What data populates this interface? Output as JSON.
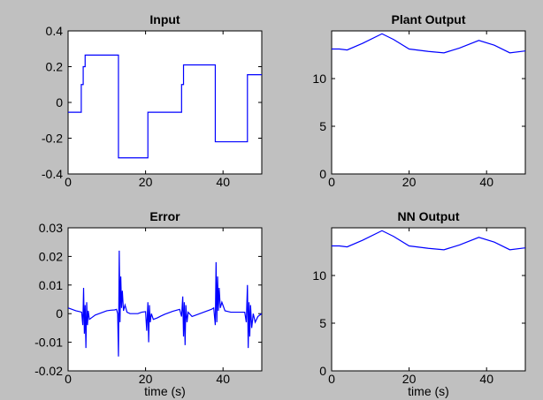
{
  "chart_data": [
    {
      "type": "line",
      "title": "Input",
      "xlabel": "",
      "ylabel": "",
      "xlim": [
        0,
        50
      ],
      "ylim": [
        -0.4,
        0.4
      ],
      "xticks": [
        0,
        20,
        40
      ],
      "xtick_labels": [
        "0",
        "20",
        "40"
      ],
      "yticks": [
        -0.4,
        -0.2,
        0,
        0.2,
        0.4
      ],
      "ytick_labels": [
        "-0.4",
        "-0.2",
        "0",
        "0.2",
        "0.4"
      ],
      "grid": false,
      "color": "#0000ff",
      "step": true,
      "x": [
        0,
        3.4,
        3.9,
        4.4,
        12.8,
        13.0,
        20.6,
        29.3,
        29.8,
        38.0,
        46.3
      ],
      "y": [
        -0.055,
        0.1,
        0.2,
        0.265,
        0.265,
        -0.31,
        -0.055,
        0.1,
        0.21,
        -0.22,
        0.155
      ]
    },
    {
      "type": "line",
      "title": "Plant Output",
      "xlabel": "",
      "ylabel": "",
      "xlim": [
        0,
        50
      ],
      "ylim": [
        0,
        15
      ],
      "xticks": [
        0,
        20,
        40
      ],
      "xtick_labels": [
        "0",
        "20",
        "40"
      ],
      "yticks": [
        0,
        5,
        10
      ],
      "ytick_labels": [
        "0",
        "5",
        "10"
      ],
      "grid": false,
      "color": "#0000ff",
      "step": false,
      "x": [
        0,
        2,
        4,
        8,
        13,
        16,
        20,
        25,
        29,
        33,
        38,
        42,
        46,
        50
      ],
      "y": [
        13.1,
        13.1,
        13.0,
        13.7,
        14.7,
        14.1,
        13.1,
        12.85,
        12.7,
        13.2,
        14.0,
        13.5,
        12.7,
        12.9
      ]
    },
    {
      "type": "line",
      "title": "Error",
      "xlabel": "time (s)",
      "ylabel": "",
      "xlim": [
        0,
        50
      ],
      "ylim": [
        -0.02,
        0.03
      ],
      "xticks": [
        0,
        20,
        40
      ],
      "xtick_labels": [
        "0",
        "20",
        "40"
      ],
      "yticks": [
        -0.02,
        -0.01,
        0,
        0.01,
        0.02,
        0.03
      ],
      "ytick_labels": [
        "-0.02",
        "-0.01",
        "0",
        "0.01",
        "0.02",
        "0.03"
      ],
      "grid": false,
      "color": "#0000ff",
      "step": false,
      "x": [
        0,
        1,
        2,
        3,
        3.5,
        3.8,
        4.0,
        4.2,
        4.4,
        4.6,
        4.8,
        5.0,
        5.2,
        5.5,
        6,
        7,
        8,
        9,
        10,
        11,
        12,
        12.5,
        12.8,
        13.0,
        13.2,
        13.4,
        13.6,
        13.8,
        14.0,
        14.3,
        14.7,
        15.2,
        16,
        17,
        18,
        19,
        20,
        20.3,
        20.6,
        20.8,
        21.0,
        21.2,
        21.5,
        22,
        23,
        24,
        25,
        26,
        27,
        28,
        28.8,
        29.3,
        29.6,
        29.8,
        30.0,
        30.2,
        30.4,
        30.7,
        31,
        32,
        33,
        34,
        35,
        36,
        37,
        37.6,
        38.0,
        38.2,
        38.4,
        38.6,
        38.8,
        39.0,
        39.3,
        39.7,
        40.5,
        42,
        44,
        45.6,
        46.0,
        46.3,
        46.5,
        46.7,
        46.9,
        47.1,
        47.4,
        47.8,
        48.3,
        49,
        50
      ],
      "y": [
        0.002,
        0.0015,
        0.001,
        0.0007,
        0.0005,
        -0.004,
        0.009,
        -0.007,
        0.003,
        -0.012,
        0.004,
        -0.004,
        0.001,
        -0.002,
        -0.0015,
        -0.0005,
        0,
        0.0005,
        0.001,
        0.0012,
        0.0013,
        0.0015,
        0.0,
        -0.015,
        0.022,
        -0.003,
        0.013,
        0.002,
        0.008,
        0.001,
        0.003,
        0.0005,
        0.0,
        0.0,
        0.0,
        0.0005,
        0.0007,
        -0.006,
        0.004,
        -0.01,
        0.003,
        -0.003,
        0.0,
        -0.002,
        -0.0015,
        -0.0008,
        -0.0002,
        0.0003,
        0.0008,
        0.0012,
        0.0015,
        -0.001,
        0.006,
        -0.008,
        0.004,
        -0.011,
        0.003,
        -0.003,
        0.0005,
        -0.001,
        -0.0005,
        0.0,
        0.0005,
        0.001,
        0.0015,
        0.002,
        -0.004,
        0.018,
        -0.003,
        0.013,
        0.001,
        0.009,
        0.002,
        0.004,
        0.001,
        0.0005,
        0.0005,
        0.0005,
        -0.003,
        0.01,
        -0.012,
        0.004,
        -0.008,
        0.003,
        -0.005,
        0.0,
        -0.003,
        -0.001,
        0.0
      ]
    },
    {
      "type": "line",
      "title": "NN Output",
      "xlabel": "time (s)",
      "ylabel": "",
      "xlim": [
        0,
        50
      ],
      "ylim": [
        0,
        15
      ],
      "xticks": [
        0,
        20,
        40
      ],
      "xtick_labels": [
        "0",
        "20",
        "40"
      ],
      "yticks": [
        0,
        5,
        10
      ],
      "ytick_labels": [
        "0",
        "5",
        "10"
      ],
      "grid": false,
      "color": "#0000ff",
      "step": false,
      "x": [
        0,
        2,
        4,
        8,
        13,
        16,
        20,
        25,
        29,
        33,
        38,
        42,
        46,
        50
      ],
      "y": [
        13.1,
        13.1,
        13.0,
        13.7,
        14.7,
        14.1,
        13.1,
        12.85,
        12.7,
        13.2,
        14.0,
        13.5,
        12.7,
        12.9
      ]
    }
  ]
}
